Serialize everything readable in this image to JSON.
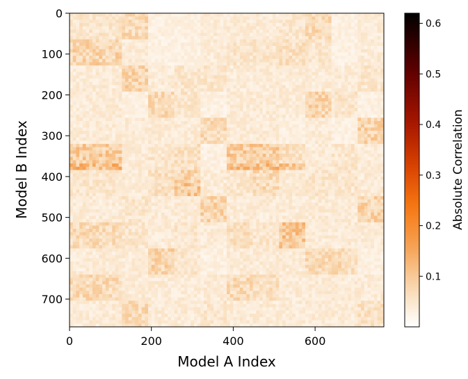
{
  "chart_data": {
    "type": "heatmap",
    "title": "",
    "xlabel": "Model A Index",
    "ylabel": "Model B Index",
    "xlim": [
      0,
      768
    ],
    "ylim": [
      768,
      0
    ],
    "x_ticks": [
      "0",
      "200",
      "400",
      "600"
    ],
    "x_tick_values": [
      0,
      200,
      400,
      600
    ],
    "y_ticks": [
      "0",
      "100",
      "200",
      "300",
      "400",
      "500",
      "600",
      "700"
    ],
    "y_tick_values": [
      0,
      100,
      200,
      300,
      400,
      500,
      600,
      700
    ],
    "colorbar": {
      "label": "Absolute Correlation",
      "range": [
        0.0,
        0.62
      ],
      "ticks": [
        "0.1",
        "0.2",
        "0.3",
        "0.4",
        "0.5",
        "0.6"
      ],
      "tick_values": [
        0.1,
        0.2,
        0.3,
        0.4,
        0.5,
        0.6
      ],
      "colormap": "gist_heat_r"
    },
    "background_value": 0.03,
    "x_block_edges": [
      0,
      64,
      128,
      192,
      256,
      320,
      384,
      448,
      512,
      576,
      640,
      704,
      768
    ],
    "y_block_edges": [
      0,
      64,
      128,
      192,
      256,
      320,
      384,
      448,
      512,
      576,
      640,
      704,
      768
    ],
    "block_values": [
      [
        0.05,
        0.05,
        0.07,
        0.03,
        0.03,
        0.04,
        0.04,
        0.04,
        0.05,
        0.07,
        0.03,
        0.04
      ],
      [
        0.08,
        0.08,
        0.04,
        0.03,
        0.03,
        0.04,
        0.05,
        0.05,
        0.06,
        0.05,
        0.03,
        0.04
      ],
      [
        0.04,
        0.04,
        0.08,
        0.04,
        0.05,
        0.05,
        0.04,
        0.04,
        0.04,
        0.04,
        0.04,
        0.05
      ],
      [
        0.04,
        0.04,
        0.03,
        0.07,
        0.05,
        0.03,
        0.04,
        0.04,
        0.04,
        0.08,
        0.05,
        0.03
      ],
      [
        0.04,
        0.04,
        0.04,
        0.04,
        0.04,
        0.07,
        0.04,
        0.04,
        0.03,
        0.04,
        0.03,
        0.08
      ],
      [
        0.09,
        0.09,
        0.04,
        0.05,
        0.06,
        0.03,
        0.09,
        0.09,
        0.06,
        0.04,
        0.05,
        0.04
      ],
      [
        0.05,
        0.05,
        0.04,
        0.06,
        0.08,
        0.04,
        0.05,
        0.07,
        0.04,
        0.05,
        0.05,
        0.04
      ],
      [
        0.04,
        0.04,
        0.05,
        0.04,
        0.04,
        0.08,
        0.04,
        0.04,
        0.04,
        0.04,
        0.04,
        0.08
      ],
      [
        0.07,
        0.07,
        0.05,
        0.04,
        0.05,
        0.04,
        0.06,
        0.05,
        0.1,
        0.04,
        0.04,
        0.04
      ],
      [
        0.04,
        0.04,
        0.04,
        0.08,
        0.05,
        0.03,
        0.04,
        0.04,
        0.04,
        0.07,
        0.07,
        0.03
      ],
      [
        0.07,
        0.07,
        0.04,
        0.04,
        0.04,
        0.04,
        0.07,
        0.06,
        0.04,
        0.04,
        0.04,
        0.04
      ],
      [
        0.04,
        0.04,
        0.07,
        0.04,
        0.04,
        0.05,
        0.04,
        0.04,
        0.04,
        0.04,
        0.04,
        0.06
      ]
    ],
    "highlight_stripes": [
      {
        "rows": [
          368,
          384
        ],
        "cols": [
          0,
          128
        ],
        "value": 0.12
      },
      {
        "rows": [
          368,
          384
        ],
        "cols": [
          384,
          576
        ],
        "value": 0.11
      },
      {
        "rows": [
          416,
          448
        ],
        "cols": [
          256,
          320
        ],
        "value": 0.1
      }
    ]
  }
}
